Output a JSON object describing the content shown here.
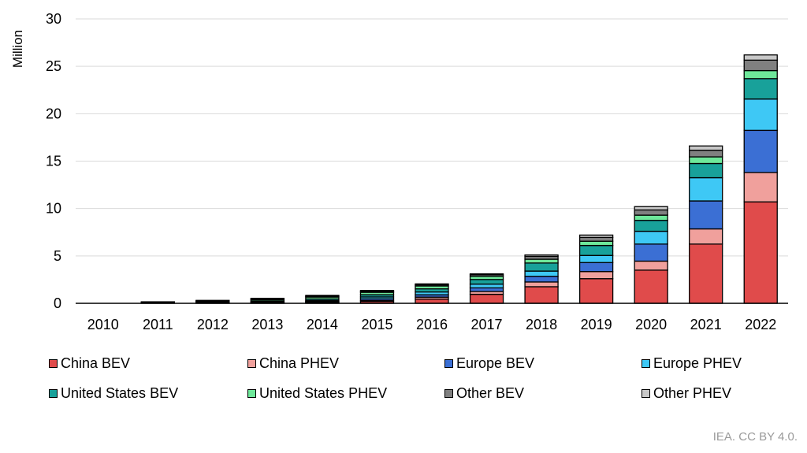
{
  "chart_data": {
    "type": "bar",
    "stacked": true,
    "ylabel": "Million",
    "ylim": [
      0,
      30
    ],
    "yticks": [
      0,
      5,
      10,
      15,
      20,
      25,
      30
    ],
    "grid": true,
    "legend_position": "bottom",
    "categories": [
      "2010",
      "2011",
      "2012",
      "2013",
      "2014",
      "2015",
      "2016",
      "2017",
      "2018",
      "2019",
      "2020",
      "2021",
      "2022"
    ],
    "series": [
      {
        "name": "China BEV",
        "color": "#e04b4b",
        "values": [
          0.0,
          0.0,
          0.01,
          0.02,
          0.07,
          0.2,
          0.45,
          0.95,
          1.75,
          2.6,
          3.5,
          6.25,
          10.7
        ]
      },
      {
        "name": "China PHEV",
        "color": "#f0a09c",
        "values": [
          0.0,
          0.0,
          0.0,
          0.01,
          0.03,
          0.1,
          0.2,
          0.3,
          0.5,
          0.75,
          0.95,
          1.6,
          3.1
        ]
      },
      {
        "name": "Europe BEV",
        "color": "#3b6fd4",
        "values": [
          0.0,
          0.02,
          0.04,
          0.07,
          0.1,
          0.17,
          0.25,
          0.38,
          0.6,
          0.95,
          1.8,
          2.95,
          4.45
        ]
      },
      {
        "name": "Europe PHEV",
        "color": "#3ec8f5",
        "values": [
          0.0,
          0.0,
          0.02,
          0.05,
          0.1,
          0.2,
          0.3,
          0.4,
          0.55,
          0.75,
          1.35,
          2.45,
          3.3
        ]
      },
      {
        "name": "United States BEV",
        "color": "#18a19a",
        "values": [
          0.0,
          0.02,
          0.05,
          0.1,
          0.16,
          0.24,
          0.33,
          0.48,
          0.85,
          1.05,
          1.15,
          1.5,
          2.15
        ]
      },
      {
        "name": "United States PHEV",
        "color": "#6ee89a",
        "values": [
          0.0,
          0.02,
          0.06,
          0.13,
          0.2,
          0.25,
          0.3,
          0.35,
          0.4,
          0.45,
          0.55,
          0.7,
          0.85
        ]
      },
      {
        "name": "Other BEV",
        "color": "#808080",
        "values": [
          0.0,
          0.01,
          0.03,
          0.05,
          0.08,
          0.1,
          0.12,
          0.15,
          0.3,
          0.4,
          0.55,
          0.7,
          1.1
        ]
      },
      {
        "name": "Other PHEV",
        "color": "#c8c8c8",
        "values": [
          0.0,
          0.0,
          0.01,
          0.02,
          0.03,
          0.04,
          0.05,
          0.09,
          0.15,
          0.25,
          0.35,
          0.45,
          0.55
        ]
      }
    ]
  },
  "credit": "IEA. CC BY 4.0."
}
